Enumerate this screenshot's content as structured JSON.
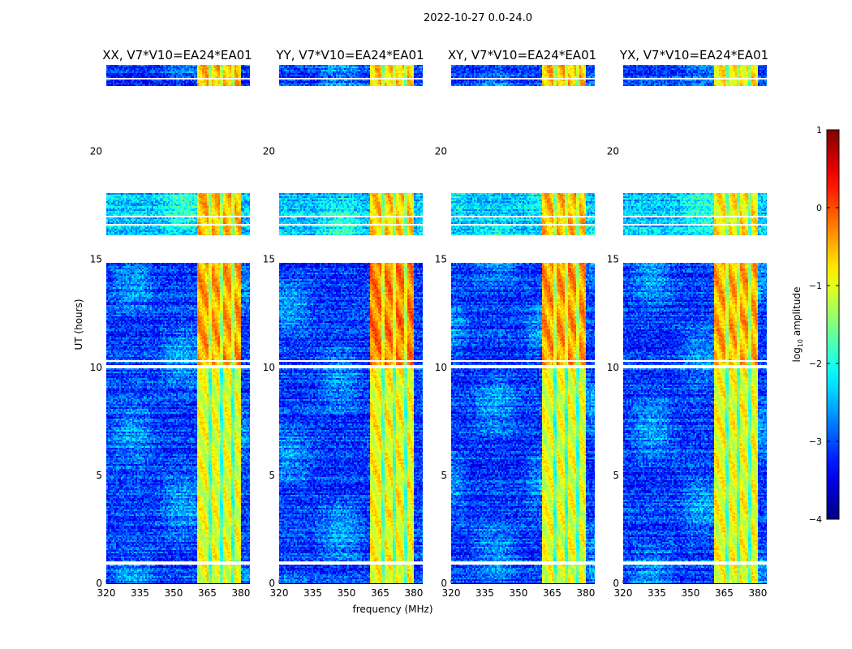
{
  "chart_data": {
    "type": "heatmap",
    "title": "2022-10-27 0.0-24.0",
    "xlabel": "frequency (MHz)",
    "ylabel": "UT (hours)",
    "xlim": [
      320,
      384
    ],
    "ylim": [
      0,
      24
    ],
    "xticks": [
      320,
      335,
      350,
      365,
      380
    ],
    "yticks": [
      0,
      5,
      10,
      15,
      20
    ],
    "panels": [
      {
        "title": "XX, V7*V10=EA24*EA01",
        "band_boost": [
          0.0,
          0.55,
          0.45
        ],
        "seed": 11
      },
      {
        "title": "YY, V7*V10=EA24*EA01",
        "band_boost": [
          0.1,
          0.75,
          0.35
        ],
        "seed": 23
      },
      {
        "title": "XY, V7*V10=EA24*EA01",
        "band_boost": [
          0.0,
          0.6,
          0.45
        ],
        "seed": 37
      },
      {
        "title": "YX, V7*V10=EA24*EA01",
        "band_boost": [
          0.05,
          0.5,
          0.2
        ],
        "seed": 51
      }
    ],
    "rfi_band_mhz": [
      360.5,
      380.0
    ],
    "rfi_stripes_mhz": [
      366.0,
      371.0,
      376.0
    ],
    "background_log_amplitude": -3.1,
    "band_log_amplitude": -1.0,
    "data_ranges_hours": [
      [
        0,
        14.8
      ],
      [
        16.1,
        18.05
      ],
      [
        23.0,
        24.0
      ]
    ],
    "no_data_hours": [
      [
        0.9,
        1.0
      ],
      [
        4.75,
        4.8
      ],
      [
        9.95,
        10.1
      ],
      [
        10.25,
        10.3
      ],
      [
        16.6,
        16.65
      ],
      [
        16.95,
        17.0
      ],
      [
        23.35,
        23.4
      ],
      [
        23.6,
        23.65
      ]
    ],
    "flagged_hours": [
      [
        0.0,
        0.03
      ],
      [
        1.4,
        1.45
      ],
      [
        1.65,
        1.7
      ],
      [
        1.9,
        2.05
      ],
      [
        2.6,
        2.65
      ],
      [
        3.0,
        3.05
      ],
      [
        3.55,
        3.65
      ],
      [
        4.25,
        4.3
      ],
      [
        5.45,
        5.5
      ],
      [
        5.6,
        5.65
      ],
      [
        6.55,
        6.6
      ],
      [
        9.6,
        9.7
      ],
      [
        10.4,
        10.45
      ],
      [
        11.55,
        11.65
      ],
      [
        11.95,
        12.0
      ],
      [
        12.05,
        12.1
      ],
      [
        12.9,
        12.95
      ],
      [
        14.75,
        14.8
      ],
      [
        16.05,
        16.12
      ],
      [
        17.5,
        17.55
      ],
      [
        17.7,
        17.75
      ],
      [
        17.95,
        18.05
      ],
      [
        21.0,
        21.3
      ],
      [
        21.7,
        21.8
      ],
      [
        22.0,
        22.08
      ],
      [
        22.35,
        22.4
      ],
      [
        23.0,
        23.05
      ],
      [
        23.55,
        23.58
      ]
    ],
    "colorbar": {
      "label": "log10 amplitude",
      "label_main": "log",
      "label_sub": "10",
      "label_rest": " amplitude",
      "range": [
        -4,
        1
      ],
      "ticks": [
        "1",
        "0",
        "−1",
        "−2",
        "−3",
        "−4"
      ],
      "tick_values": [
        1,
        0,
        -1,
        -2,
        -3,
        -4
      ],
      "colormap": "jet"
    }
  }
}
